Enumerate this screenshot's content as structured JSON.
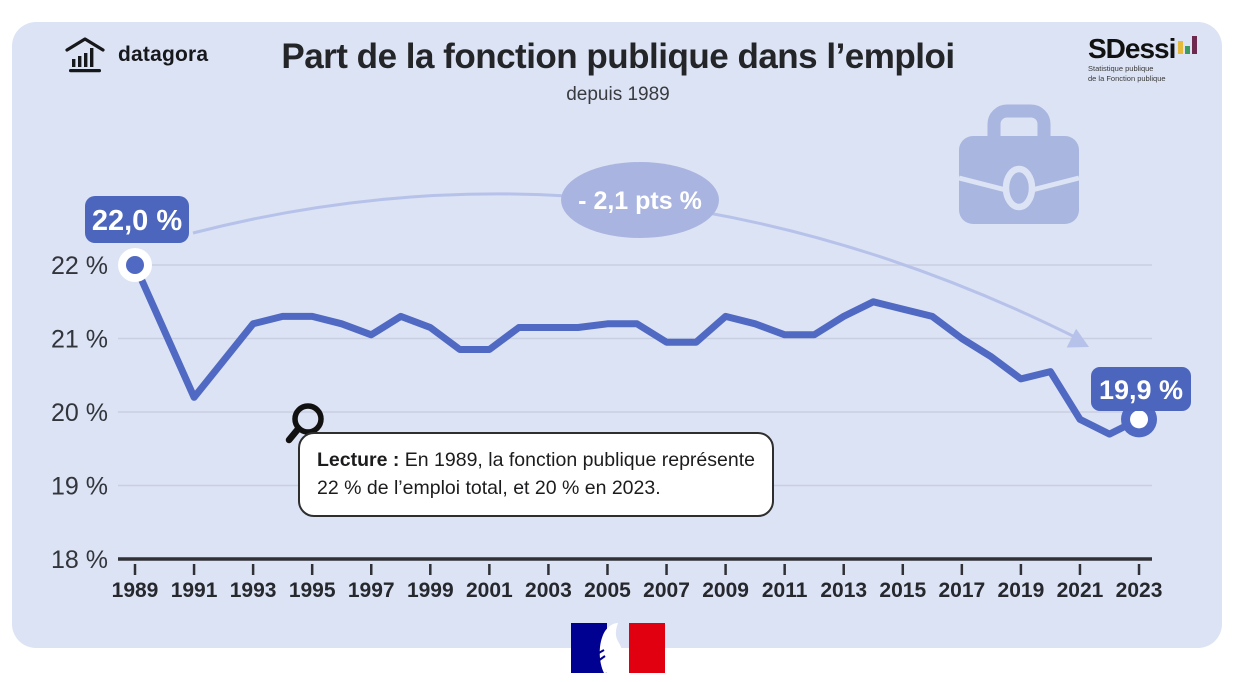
{
  "page": {
    "card_background": "#dce3f4"
  },
  "header": {
    "brand": "datagora",
    "title": "Part de la fonction publique dans l’emploi",
    "subtitle": "depuis 1989",
    "sdessi": {
      "name": "SDessi",
      "tagline1": "Statistique publique",
      "tagline2": "de la Fonction publique",
      "bar_colors": [
        "#e6bb3c",
        "#3a9a5f",
        "#6e2a4e"
      ]
    }
  },
  "chart_data": {
    "type": "line",
    "title": "Part de la fonction publique dans l’emploi",
    "subtitle": "depuis 1989",
    "x": [
      1989,
      1990,
      1991,
      1992,
      1993,
      1994,
      1995,
      1996,
      1997,
      1998,
      1999,
      2000,
      2001,
      2002,
      2003,
      2004,
      2005,
      2006,
      2007,
      2008,
      2009,
      2010,
      2011,
      2012,
      2013,
      2014,
      2015,
      2016,
      2017,
      2018,
      2019,
      2020,
      2021,
      2022,
      2023
    ],
    "values": [
      22.0,
      21.1,
      20.2,
      20.7,
      21.2,
      21.3,
      21.3,
      21.2,
      21.05,
      21.3,
      21.15,
      20.85,
      20.85,
      21.15,
      21.15,
      21.15,
      21.2,
      21.2,
      20.95,
      20.95,
      21.3,
      21.2,
      21.05,
      21.05,
      21.3,
      21.5,
      21.4,
      21.3,
      21.0,
      20.75,
      20.45,
      20.55,
      19.9,
      19.7,
      19.9
    ],
    "ylim": [
      18,
      22
    ],
    "unit": "%",
    "grid": "on",
    "legend": "none",
    "y_ticks": [
      {
        "value": 22,
        "label": "22 %"
      },
      {
        "value": 21,
        "label": "21 %"
      },
      {
        "value": 20,
        "label": "20 %"
      },
      {
        "value": 19,
        "label": "19 %"
      },
      {
        "value": 18,
        "label": "18 %"
      }
    ],
    "x_tick_years": [
      1989,
      1991,
      1993,
      1995,
      1997,
      1999,
      2001,
      2003,
      2005,
      2007,
      2009,
      2011,
      2013,
      2015,
      2017,
      2019,
      2021,
      2023
    ],
    "start_label": "22,0 %",
    "end_label": "19,9 %",
    "change_label": "- 2,1 pts %"
  },
  "lecture": {
    "label": "Lecture :",
    "line1": "En 1989, la fonction publique représente",
    "line2": "22 % de l’emploi total, et 20 % en 2023."
  },
  "colors": {
    "line": "#5069c2",
    "value_label_bg": "#4c66bd",
    "bubble": "#a9b5e0",
    "arc": "#b7c2ea",
    "briefcase": "#a9b6e0",
    "axis": "#2f3136",
    "grid": "#c9cfe2",
    "marianne_blue": "#000091",
    "marianne_red": "#e1000f"
  }
}
